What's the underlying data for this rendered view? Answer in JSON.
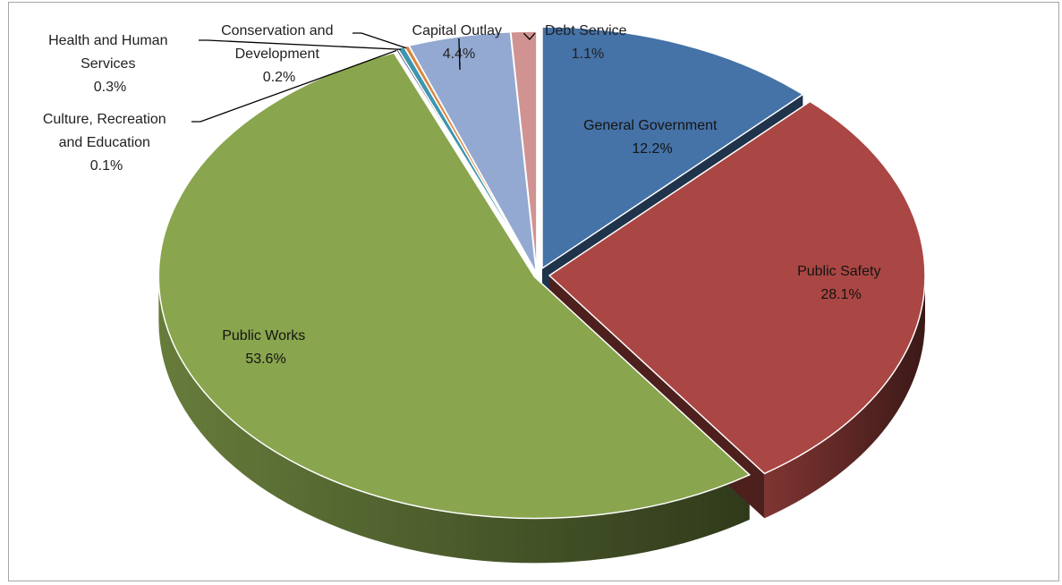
{
  "chart_data": {
    "type": "pie",
    "title": "",
    "slices": [
      {
        "name": "General Government",
        "value": 12.2,
        "label": "12.2%",
        "color": "#4572a7"
      },
      {
        "name": "Public Safety",
        "value": 28.1,
        "label": "28.1%",
        "color": "#aa4643"
      },
      {
        "name": "Public Works",
        "value": 53.6,
        "label": "53.6%",
        "color": "#89a54e"
      },
      {
        "name": "Culture, Recreation and Education",
        "value": 0.1,
        "label": "0.1%",
        "color": "#3b2e5a"
      },
      {
        "name": "Health and Human Services",
        "value": 0.3,
        "label": "0.3%",
        "color": "#3d96ae"
      },
      {
        "name": "Conservation and Development",
        "value": 0.2,
        "label": "0.2%",
        "color": "#db843d"
      },
      {
        "name": "Capital Outlay",
        "value": 4.4,
        "label": "4.4%",
        "color": "#93a9d1"
      },
      {
        "name": "Debt Service",
        "value": 1.1,
        "label": "1.1%",
        "color": "#d09392"
      }
    ],
    "legend": "none",
    "style": "3d-exploded"
  }
}
